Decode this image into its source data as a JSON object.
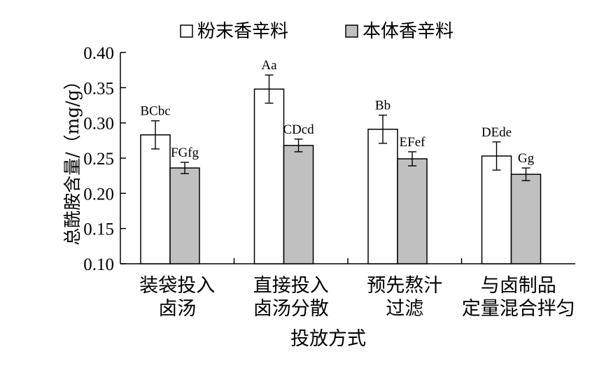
{
  "chart_data": {
    "type": "bar",
    "categories": [
      [
        "装袋投入",
        "卤汤"
      ],
      [
        "直接投入",
        "卤汤分散"
      ],
      [
        "预先熬汁",
        "过滤"
      ],
      [
        "与卤制品",
        "定量混合拌匀"
      ]
    ],
    "series": [
      {
        "name": "粉末香辛料",
        "color": "#ffffff",
        "values": [
          0.283,
          0.348,
          0.291,
          0.253
        ],
        "errors": [
          0.02,
          0.02,
          0.02,
          0.02
        ],
        "labels": [
          "BCbc",
          "Aa",
          "Bb",
          "DEde"
        ]
      },
      {
        "name": "本体香辛料",
        "color": "#c0c0c0",
        "values": [
          0.236,
          0.268,
          0.249,
          0.227
        ],
        "errors": [
          0.008,
          0.009,
          0.01,
          0.009
        ],
        "labels": [
          "FGfg",
          "CDcd",
          "EFef",
          "Gg"
        ]
      }
    ],
    "ylabel": "总酰胺含量/（mg/g）",
    "xlabel": "投放方式",
    "ylim": [
      0.1,
      0.4
    ],
    "yticks": [
      "0.10",
      "0.15",
      "0.20",
      "0.25",
      "0.30",
      "0.35",
      "0.40"
    ],
    "grid": false,
    "legend_position": "top"
  }
}
